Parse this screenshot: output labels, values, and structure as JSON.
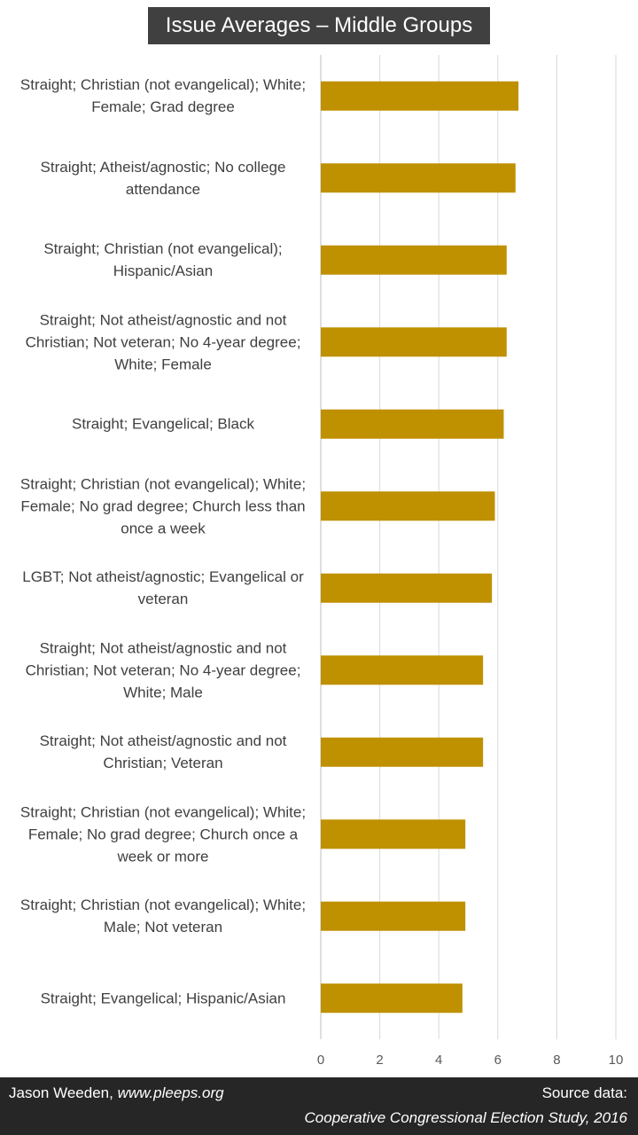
{
  "chart_data": {
    "type": "bar",
    "orientation": "horizontal",
    "title": "Issue Averages – Middle Groups",
    "categories": [
      "Straight; Christian (not evangelical); White; Female; Grad degree",
      "Straight; Atheist/agnostic; No college attendance",
      "Straight; Christian (not evangelical); Hispanic/Asian",
      "Straight; Not atheist/agnostic and not Christian; Not veteran; No 4-year degree; White; Female",
      "Straight; Evangelical; Black",
      "Straight; Christian (not evangelical); White; Female; No grad degree; Church less than once a week",
      "LGBT; Not atheist/agnostic; Evangelical or veteran",
      "Straight; Not atheist/agnostic and not Christian; Not veteran; No 4-year degree; White; Male",
      "Straight; Not atheist/agnostic and not Christian; Veteran",
      "Straight; Christian (not evangelical); White; Female; No grad degree; Church once a week or more",
      "Straight; Christian (not evangelical); White; Male; Not veteran",
      "Straight; Evangelical; Hispanic/Asian"
    ],
    "values": [
      6.7,
      6.6,
      6.3,
      6.3,
      6.2,
      5.9,
      5.8,
      5.5,
      5.5,
      4.9,
      4.9,
      4.8
    ],
    "color": "#bf9000",
    "xlim": [
      0,
      10
    ],
    "xticks": [
      0,
      2,
      4,
      6,
      8,
      10
    ],
    "grid": true
  },
  "footer": {
    "author": "Jason Weeden,",
    "site": "www.pleeps.org",
    "source_label": "Source data:",
    "source": "Cooperative Congressional Election Study, 2016"
  }
}
